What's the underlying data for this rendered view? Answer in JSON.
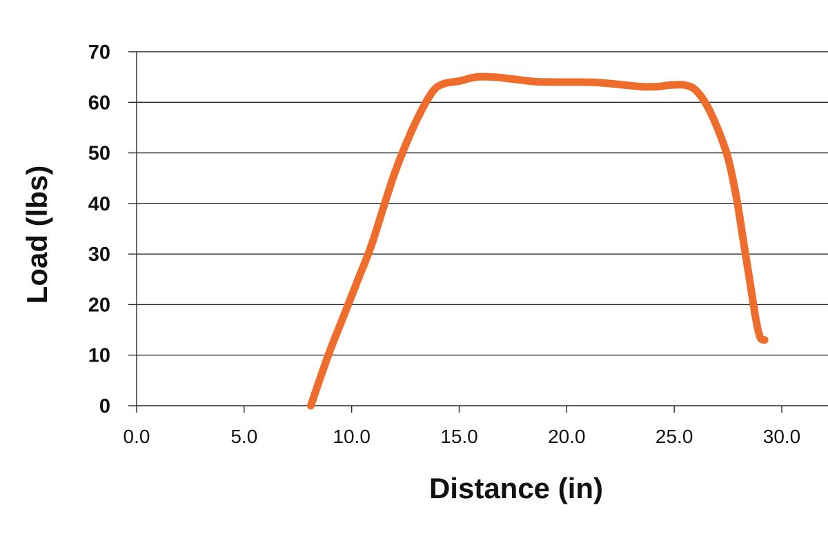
{
  "chart_data": {
    "type": "line",
    "title": "",
    "xlabel": "Distance (in)",
    "ylabel": "Load (lbs)",
    "xlim": [
      0,
      30
    ],
    "ylim": [
      0,
      70
    ],
    "x_ticks": [
      "0.0",
      "5.0",
      "10.0",
      "15.0",
      "20.0",
      "25.0",
      "30.0"
    ],
    "y_ticks": [
      "0",
      "10",
      "20",
      "30",
      "40",
      "50",
      "60",
      "70"
    ],
    "grid": "horizontal",
    "legend": "none",
    "colors": {
      "line": "#ee6c2c",
      "grid": "#2a2a2a",
      "text": "#111111"
    },
    "series": [
      {
        "x": [
          8.1,
          8.5,
          9.0,
          9.7,
          10.3,
          10.9,
          11.5,
          12.0,
          12.6,
          13.2,
          13.8,
          14.3,
          15.0,
          15.8,
          16.6,
          17.5,
          18.5,
          19.5,
          20.5,
          21.5,
          22.5,
          23.5,
          24.2,
          24.8,
          25.5,
          26.0,
          26.5,
          27.0,
          27.5,
          27.9,
          28.2,
          28.5,
          28.8,
          29.0,
          29.2
        ],
        "y": [
          0,
          5,
          11,
          18.5,
          25,
          31.5,
          39.5,
          46,
          52.5,
          58,
          62.3,
          63.7,
          64.2,
          65,
          65,
          64.6,
          64.1,
          64,
          64,
          63.9,
          63.5,
          63.1,
          63.1,
          63.4,
          63.4,
          62.4,
          59.5,
          55,
          49,
          41,
          33,
          25,
          17,
          13.5,
          13
        ]
      }
    ]
  }
}
